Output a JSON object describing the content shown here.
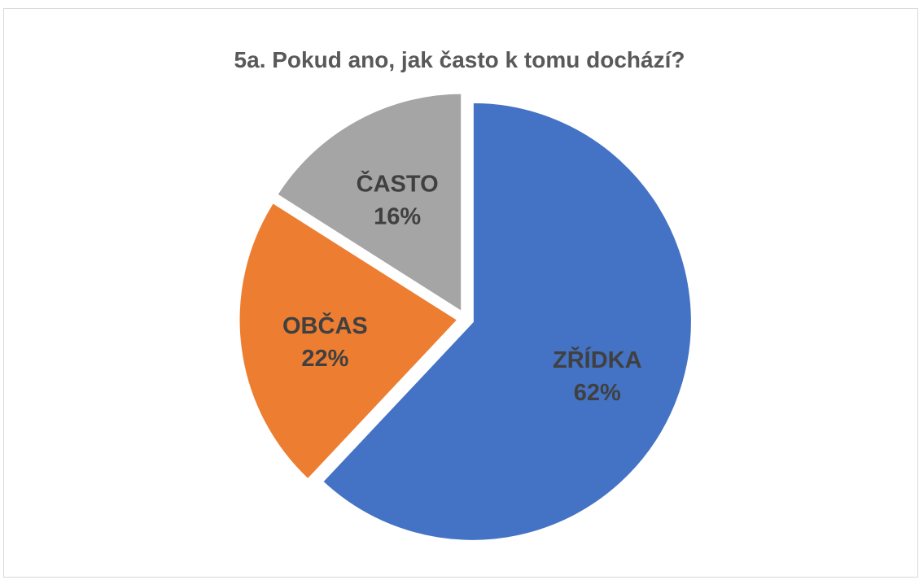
{
  "chart_data": {
    "type": "pie",
    "title": "5a. Pokud ano, jak často k tomu dochází?",
    "slices": [
      {
        "label": "ZŘÍDKA",
        "value": 62,
        "value_label": "62%",
        "color": "#4472C4"
      },
      {
        "label": "OBČAS",
        "value": 22,
        "value_label": "22%",
        "color": "#ED7D31"
      },
      {
        "label": "ČASTO",
        "value": 16,
        "value_label": "16%",
        "color": "#A5A5A5"
      }
    ],
    "legend": "none",
    "labels_position": "inside"
  }
}
